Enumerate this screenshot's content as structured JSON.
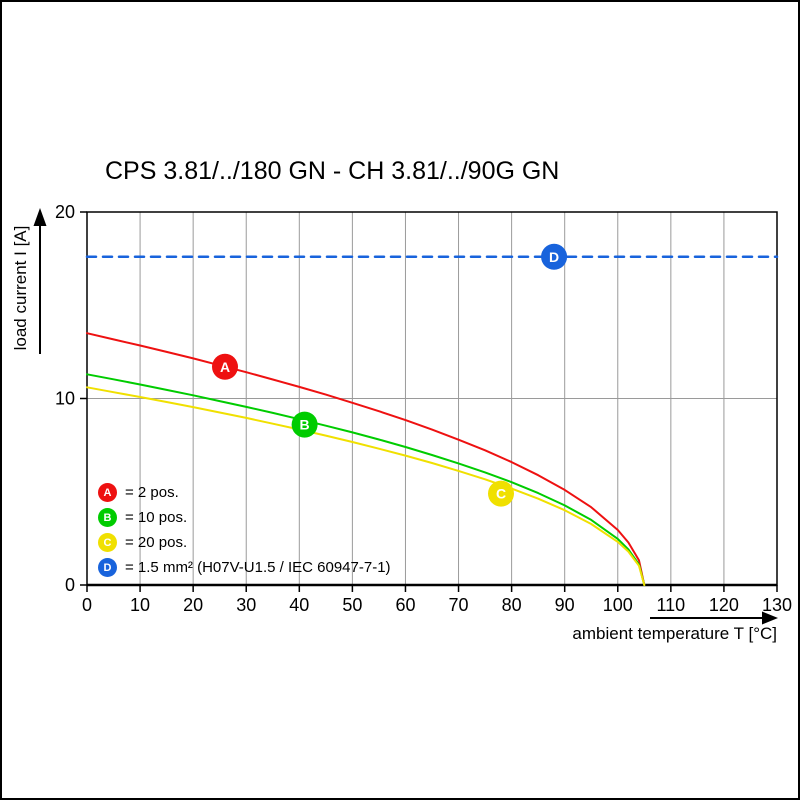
{
  "title": "CPS 3.81/../180 GN - CH 3.81/../90G GN",
  "chart_data": {
    "type": "line",
    "title": "CPS 3.81/../180 GN - CH 3.81/../90G GN",
    "xlabel": "ambient temperature T [°C]",
    "ylabel": "load current I [A]",
    "xlim": [
      0,
      130
    ],
    "ylim": [
      0,
      20
    ],
    "x_ticks": [
      0,
      10,
      20,
      30,
      40,
      50,
      60,
      70,
      80,
      90,
      100,
      110,
      120,
      130
    ],
    "y_ticks": [
      0,
      10,
      20
    ],
    "grid": {
      "vertical": [
        10,
        20,
        30,
        40,
        50,
        60,
        70,
        80,
        90,
        100,
        110,
        120
      ],
      "horizontal": [
        10
      ]
    },
    "legend_position": "inside bottom-left",
    "series": [
      {
        "name": "A",
        "label": "= 2 pos.",
        "color": "#ee1111",
        "dashed": false,
        "points": [
          [
            0,
            13.5
          ],
          [
            5,
            13.17
          ],
          [
            10,
            12.84
          ],
          [
            15,
            12.5
          ],
          [
            20,
            12.15
          ],
          [
            25,
            11.78
          ],
          [
            30,
            11.41
          ],
          [
            35,
            11.02
          ],
          [
            40,
            10.62
          ],
          [
            45,
            10.21
          ],
          [
            50,
            9.77
          ],
          [
            55,
            9.32
          ],
          [
            60,
            8.84
          ],
          [
            65,
            8.33
          ],
          [
            70,
            7.79
          ],
          [
            75,
            7.22
          ],
          [
            80,
            6.59
          ],
          [
            85,
            5.89
          ],
          [
            90,
            5.1
          ],
          [
            95,
            4.17
          ],
          [
            100,
            2.95
          ],
          [
            102,
            2.28
          ],
          [
            104,
            1.32
          ],
          [
            105,
            0
          ]
        ]
      },
      {
        "name": "B",
        "label": "= 10 pos.",
        "color": "#00cc00",
        "dashed": false,
        "points": [
          [
            0,
            11.3
          ],
          [
            5,
            11.03
          ],
          [
            10,
            10.75
          ],
          [
            15,
            10.46
          ],
          [
            20,
            10.17
          ],
          [
            25,
            9.86
          ],
          [
            30,
            9.55
          ],
          [
            35,
            9.23
          ],
          [
            40,
            8.89
          ],
          [
            45,
            8.54
          ],
          [
            50,
            8.18
          ],
          [
            55,
            7.8
          ],
          [
            60,
            7.4
          ],
          [
            65,
            6.97
          ],
          [
            70,
            6.52
          ],
          [
            75,
            6.04
          ],
          [
            80,
            5.51
          ],
          [
            85,
            4.93
          ],
          [
            90,
            4.27
          ],
          [
            95,
            3.49
          ],
          [
            100,
            2.47
          ],
          [
            102,
            1.91
          ],
          [
            104,
            1.1
          ],
          [
            105,
            0
          ]
        ]
      },
      {
        "name": "C",
        "label": "= 20 pos.",
        "color": "#f0e000",
        "dashed": false,
        "points": [
          [
            0,
            10.6
          ],
          [
            5,
            10.34
          ],
          [
            10,
            10.08
          ],
          [
            15,
            9.81
          ],
          [
            20,
            9.54
          ],
          [
            25,
            9.25
          ],
          [
            30,
            8.96
          ],
          [
            35,
            8.65
          ],
          [
            40,
            8.34
          ],
          [
            45,
            8.01
          ],
          [
            50,
            7.67
          ],
          [
            55,
            7.31
          ],
          [
            60,
            6.94
          ],
          [
            65,
            6.54
          ],
          [
            70,
            6.12
          ],
          [
            75,
            5.67
          ],
          [
            80,
            5.17
          ],
          [
            85,
            4.63
          ],
          [
            90,
            4.01
          ],
          [
            95,
            3.27
          ],
          [
            100,
            2.31
          ],
          [
            102,
            1.79
          ],
          [
            104,
            1.03
          ],
          [
            105,
            0
          ]
        ]
      },
      {
        "name": "D",
        "label": "= 1.5 mm² (H07V-U1.5 / IEC 60947-7-1)",
        "color": "#1863dc",
        "dashed": true,
        "points": [
          [
            0,
            17.6
          ],
          [
            130,
            17.6
          ]
        ]
      }
    ],
    "markers": [
      {
        "name": "A",
        "x": 26,
        "y": 11.7,
        "color": "#ee1111"
      },
      {
        "name": "B",
        "x": 41,
        "y": 8.6,
        "color": "#00cc00"
      },
      {
        "name": "C",
        "x": 78,
        "y": 4.9,
        "color": "#f0e000"
      },
      {
        "name": "D",
        "x": 88,
        "y": 17.6,
        "color": "#1863dc"
      }
    ]
  }
}
